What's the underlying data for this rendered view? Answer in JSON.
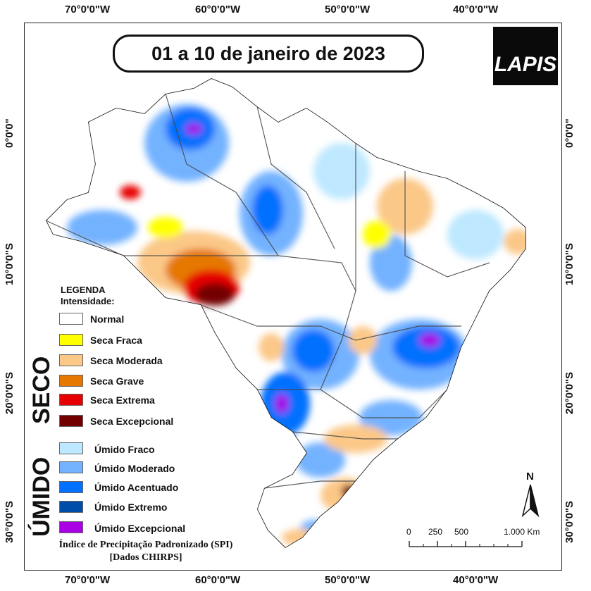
{
  "map_title": "01 a 10 de janeiro de 2023",
  "logo_text": "LAPIS",
  "longitude_ticks": [
    "70°0'0\"W",
    "60°0'0\"W",
    "50°0'0\"W",
    "40°0'0\"W"
  ],
  "latitude_ticks": [
    "0°0'0\"",
    "10°0'0\"S",
    "20°0'0\"S",
    "30°0'0\"S"
  ],
  "legend": {
    "heading": "LEGENDA",
    "subheading": "Intensidade:",
    "normal": {
      "label": "Normal",
      "color": "#ffffff"
    },
    "dry_group_label": "SECO",
    "dry": [
      {
        "label": "Seca Fraca",
        "color": "#ffff00"
      },
      {
        "label": "Seca Moderada",
        "color": "#fbc888"
      },
      {
        "label": "Seca Grave",
        "color": "#e67800"
      },
      {
        "label": "Seca Extrema",
        "color": "#e60000"
      },
      {
        "label": "Seca Excepcional",
        "color": "#730000"
      }
    ],
    "wet_group_label": "ÚMIDO",
    "wet": [
      {
        "label": "Úmido Fraco",
        "color": "#bee8ff"
      },
      {
        "label": "Úmido Moderado",
        "color": "#73b2ff"
      },
      {
        "label": "Úmido Acentuado",
        "color": "#0070ff"
      },
      {
        "label": "Úmido Extremo",
        "color": "#004da8"
      },
      {
        "label": "Úmido Excepcional",
        "color": "#a900e6"
      }
    ]
  },
  "source": {
    "line1": "Índice de Precipitação Padronizado (SPI)",
    "line2": "[Dados CHIRPS]"
  },
  "scale_bar": {
    "labels": [
      "0",
      "250",
      "500",
      "1.000 Km"
    ]
  },
  "north_label": "N"
}
